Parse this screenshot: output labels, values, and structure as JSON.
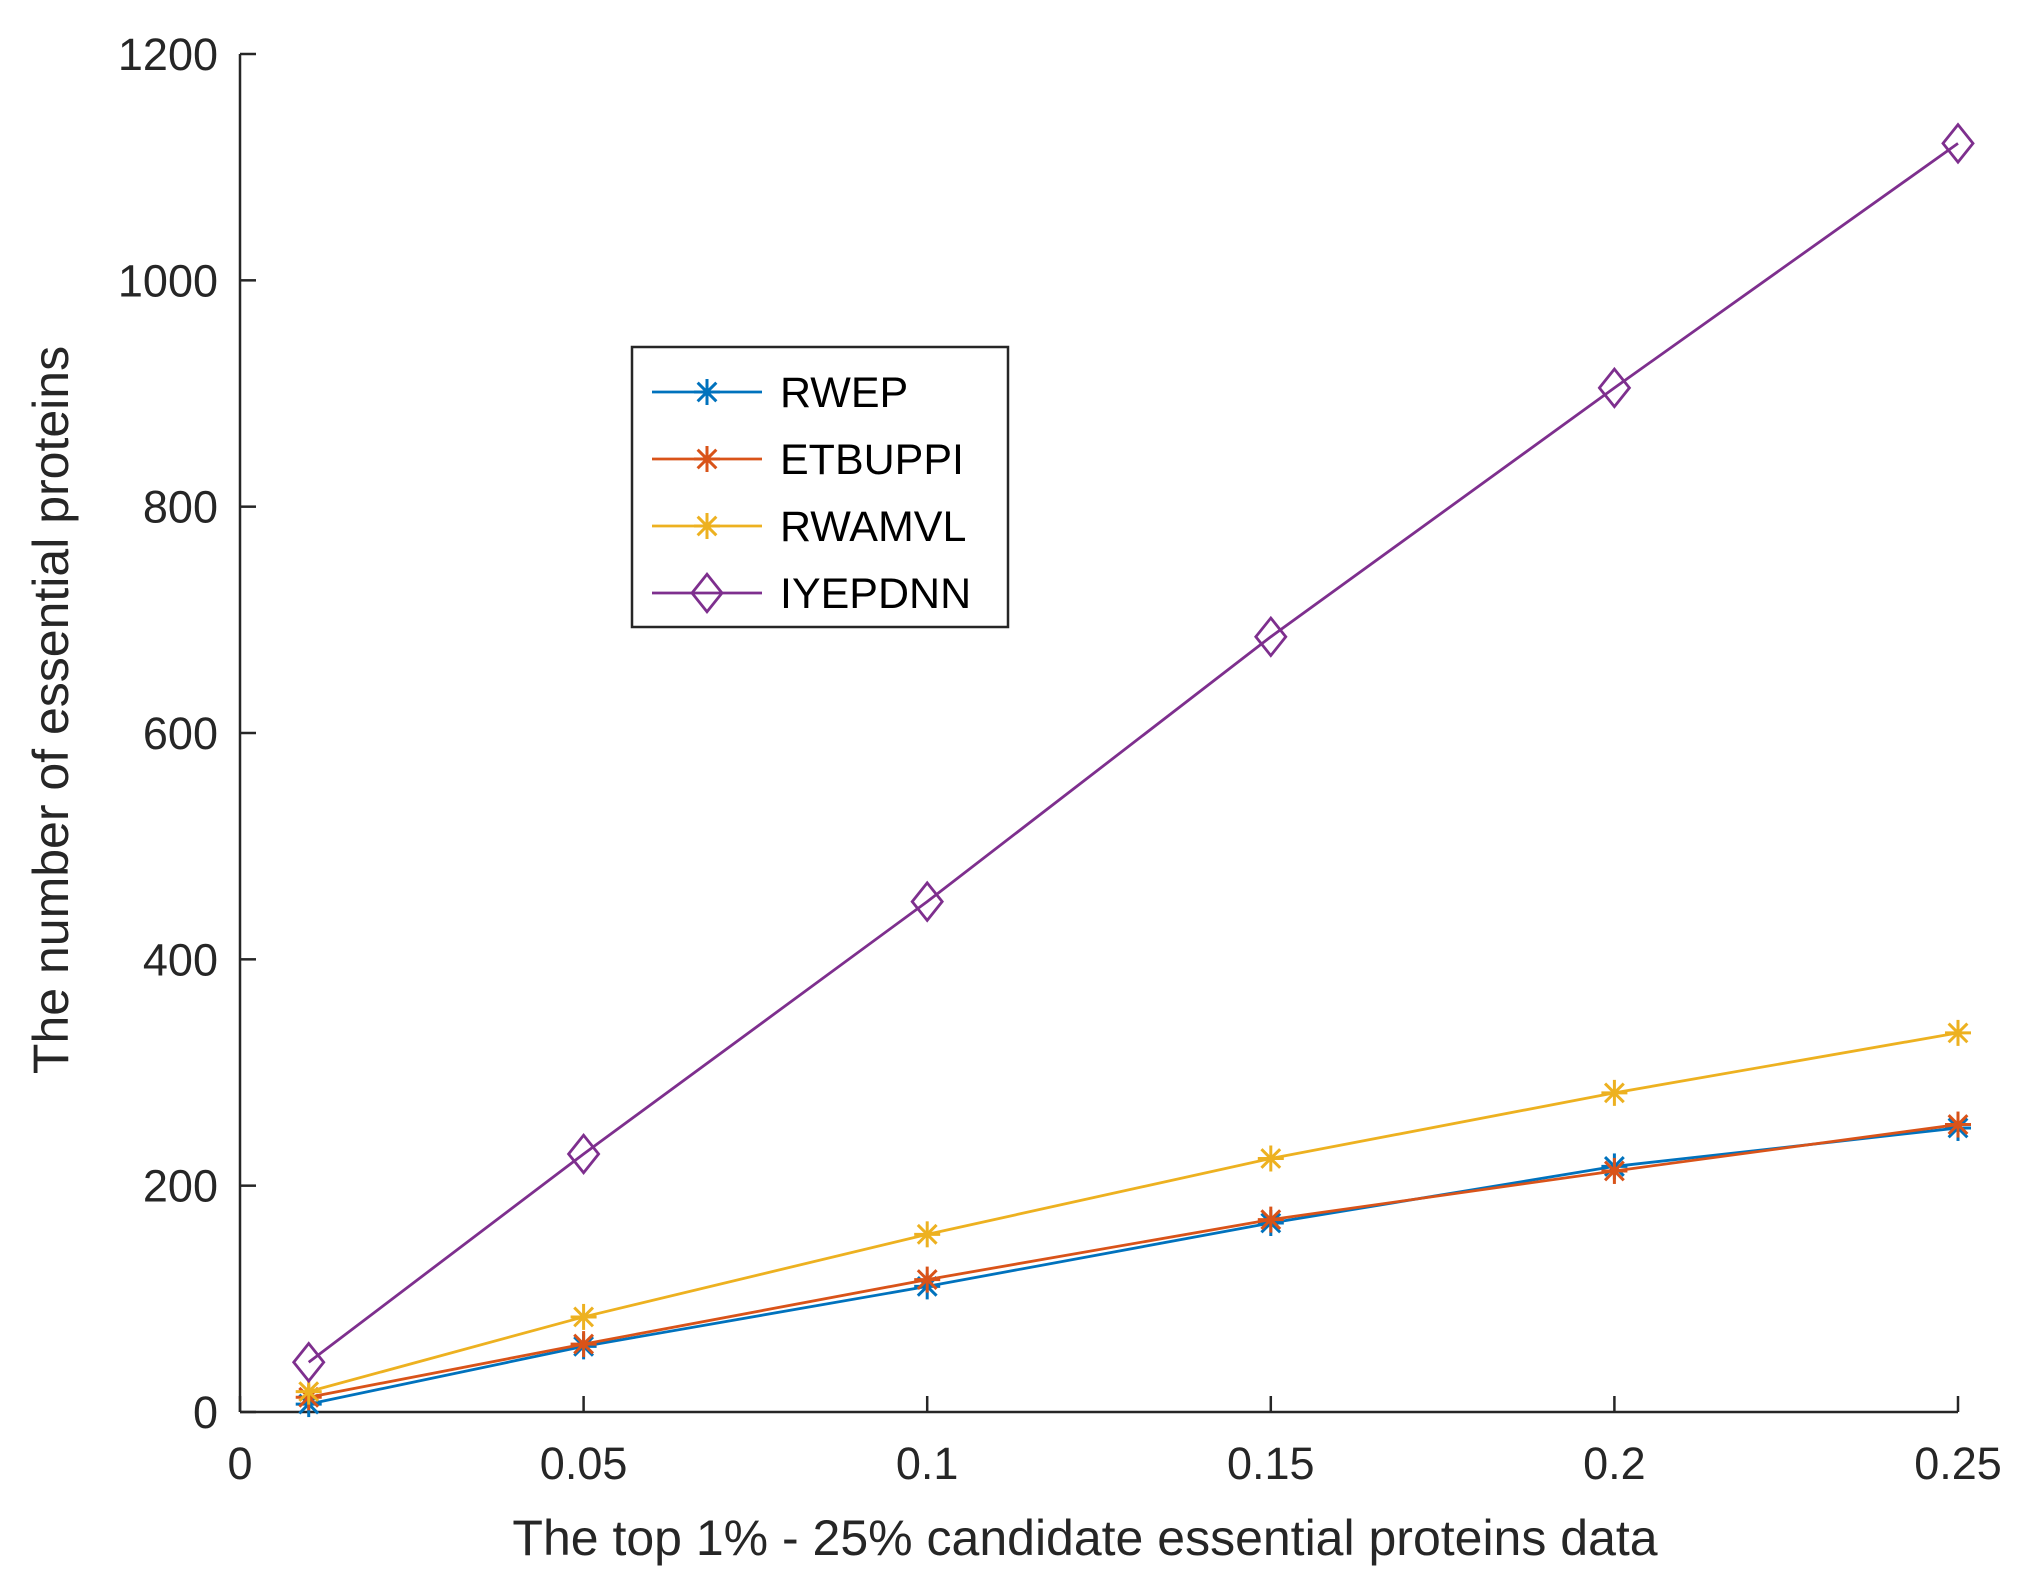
{
  "chart_data": {
    "type": "line",
    "title": "",
    "xlabel": "The top 1% - 25% candidate essential proteins data",
    "ylabel": "The number of essential proteins",
    "xlim": [
      0,
      0.25
    ],
    "ylim": [
      0,
      1200
    ],
    "x_ticks": [
      0,
      0.05,
      0.1,
      0.15,
      0.2,
      0.25
    ],
    "x_tick_labels": [
      "0",
      "0.05",
      "0.1",
      "0.15",
      "0.2",
      "0.25"
    ],
    "y_ticks": [
      0,
      200,
      400,
      600,
      800,
      1000,
      1200
    ],
    "y_tick_labels": [
      "0",
      "200",
      "400",
      "600",
      "800",
      "1000",
      "1200"
    ],
    "x": [
      0.01,
      0.05,
      0.1,
      0.15,
      0.2,
      0.25
    ],
    "grid": false,
    "legend_position": "upper-left-inside",
    "series": [
      {
        "name": "RWEP",
        "color": "#0072BD",
        "marker": "asterisk",
        "values": [
          7,
          58,
          111,
          167,
          217,
          251
        ]
      },
      {
        "name": "ETBUPPI",
        "color": "#D95319",
        "marker": "asterisk",
        "values": [
          13,
          60,
          117,
          170,
          213,
          254
        ]
      },
      {
        "name": "RWAMVL",
        "color": "#EDB120",
        "marker": "asterisk",
        "values": [
          18,
          84,
          157,
          224,
          282,
          335
        ]
      },
      {
        "name": "IYEPDNN",
        "color": "#7E2F8E",
        "marker": "diamond",
        "values": [
          44,
          228,
          451,
          685,
          905,
          1121
        ]
      }
    ]
  }
}
